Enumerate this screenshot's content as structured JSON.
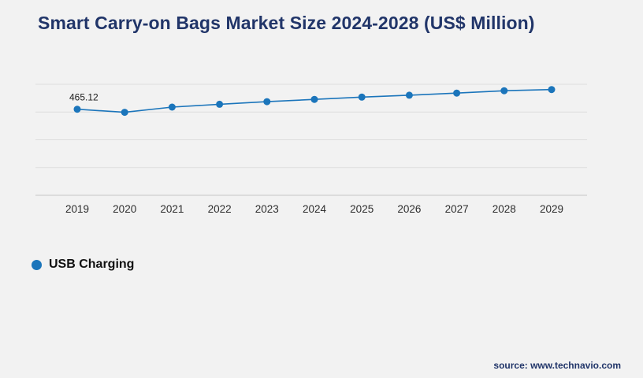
{
  "page": {
    "title": "Smart Carry-on Bags Market Size 2024-2028 (US$ Million)",
    "source_text": "source: www.technavio.com",
    "background_color": "#f2f2f2",
    "title_color": "#213569"
  },
  "legend": {
    "label": "USB Charging",
    "marker_color": "#1b75bb"
  },
  "chart_data": {
    "type": "line",
    "title": "Smart Carry-on Bags Market Size 2024-2028 (US$ Million)",
    "categories": [
      "2019",
      "2020",
      "2021",
      "2022",
      "2023",
      "2024",
      "2025",
      "2026",
      "2027",
      "2028",
      "2029"
    ],
    "series": [
      {
        "name": "USB Charging",
        "color": "#1b75bb",
        "values": [
          465.12,
          448.3,
          476.5,
          492.1,
          505.8,
          518.2,
          530.6,
          540.9,
          552.3,
          565.1,
          571.4
        ]
      }
    ],
    "point_labels": [
      {
        "category": "2019",
        "text": "465.12"
      }
    ],
    "xlabel": "",
    "ylabel": "",
    "ylim": [
      0,
      600
    ],
    "gridline_values": [
      0,
      150,
      300,
      450,
      600
    ],
    "grid": true,
    "y_axis_labels_visible": false,
    "legend_position": "bottom-left"
  }
}
